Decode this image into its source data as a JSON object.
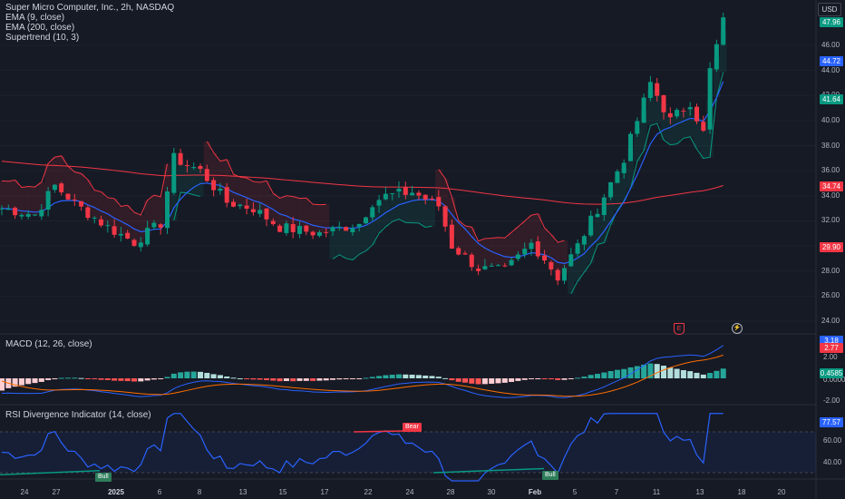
{
  "header": {
    "symbol_line": "Super Micro Computer, Inc., 2h, NASDAQ",
    "ema9": "EMA (9, close)",
    "ema200": "EMA (200, close)",
    "supertrend": "Supertrend (10, 3)",
    "currency": "USD"
  },
  "price_axis": {
    "ticks": [
      "46.00",
      "44.00",
      "42.00",
      "40.00",
      "38.00",
      "36.00",
      "34.00",
      "32.00",
      "30.00",
      "28.00",
      "26.00",
      "24.00"
    ],
    "tags": [
      {
        "label": "47.96",
        "color": "#089981"
      },
      {
        "label": "44.72",
        "color": "#2962ff"
      },
      {
        "label": "41.64",
        "color": "#089981"
      },
      {
        "label": "34.74",
        "color": "#f23645"
      },
      {
        "label": "29.90",
        "color": "#f23645"
      }
    ]
  },
  "macd": {
    "legend": "MACD (12, 26, close)",
    "ticks": [
      "2.00",
      "0.0000",
      "-2.00"
    ],
    "tags": [
      {
        "label": "3.18",
        "color": "#2962ff"
      },
      {
        "label": "2.77",
        "color": "#f23645"
      },
      {
        "label": "0.4585",
        "color": "#089981"
      }
    ]
  },
  "rsi": {
    "legend": "RSI Divergence Indicator (14, close)",
    "ticks": [
      "60.00",
      "40.00"
    ],
    "tag": {
      "label": "77.57",
      "color": "#2962ff"
    },
    "signals": [
      {
        "label": "Bull",
        "color": "#2e7d5b"
      },
      {
        "label": "Bear",
        "color": "#f23645"
      },
      {
        "label": "Bull",
        "color": "#2e7d5b"
      }
    ]
  },
  "time_axis": [
    "24",
    "27",
    "2025",
    "6",
    "8",
    "13",
    "15",
    "17",
    "22",
    "24",
    "28",
    "30",
    "Feb",
    "5",
    "7",
    "11",
    "13",
    "18",
    "20"
  ],
  "icons": {
    "earnings": "E",
    "dividend": "⚡"
  },
  "colors": {
    "up": "#089981",
    "down": "#f23645",
    "ema9": "#2962ff",
    "ema200": "#f23645",
    "rsi": "#2962ff"
  }
}
